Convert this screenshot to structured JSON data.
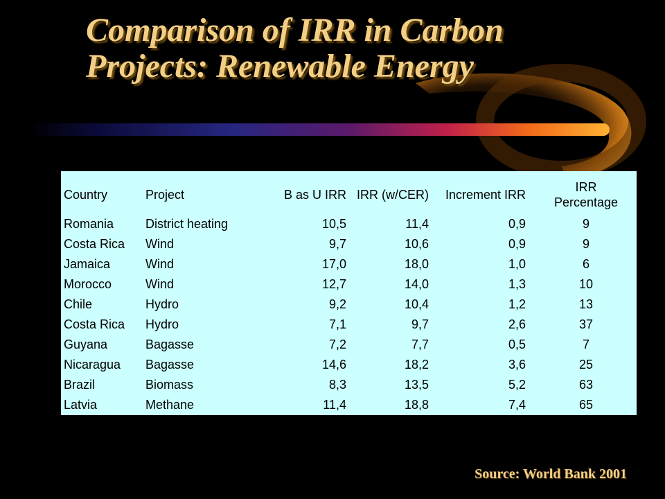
{
  "title": {
    "line1": "Comparison of IRR in Carbon",
    "line2": "Projects: Renewable Energy"
  },
  "table": {
    "headers": {
      "country": "Country",
      "project": "Project",
      "bas_irr": "B as U IRR",
      "irr_cer": "IRR (w/CER)",
      "increment": "Increment IRR",
      "pct_line1": "IRR",
      "pct_line2": "Percentage"
    },
    "rows": [
      [
        "Romania",
        "District heating",
        "10,5",
        "11,4",
        "0,9",
        "9"
      ],
      [
        "Costa Rica",
        "Wind",
        "9,7",
        "10,6",
        "0,9",
        "9"
      ],
      [
        "Jamaica",
        "Wind",
        "17,0",
        "18,0",
        "1,0",
        "6"
      ],
      [
        "Morocco",
        "Wind",
        "12,7",
        "14,0",
        "1,3",
        "10"
      ],
      [
        "Chile",
        "Hydro",
        "9,2",
        "10,4",
        "1,2",
        "13"
      ],
      [
        "Costa Rica",
        "Hydro",
        "7,1",
        "9,7",
        "2,6",
        "37"
      ],
      [
        "Guyana",
        "Bagasse",
        "7,2",
        "7,7",
        "0,5",
        "7"
      ],
      [
        "Nicaragua",
        "Bagasse",
        "14,6",
        "18,2",
        "3,6",
        "25"
      ],
      [
        "Brazil",
        "Biomass",
        "8,3",
        "13,5",
        "5,2",
        "63"
      ],
      [
        "Latvia",
        "Methane",
        "11,4",
        "18,8",
        "7,4",
        "65"
      ]
    ]
  },
  "source": "Source: World Bank 2001",
  "colors": {
    "background": "#000000",
    "title": "#f3cf86",
    "table_background": "#ccffff",
    "swoosh_start": "#1a1a6e",
    "swoosh_end": "#ff9900"
  }
}
